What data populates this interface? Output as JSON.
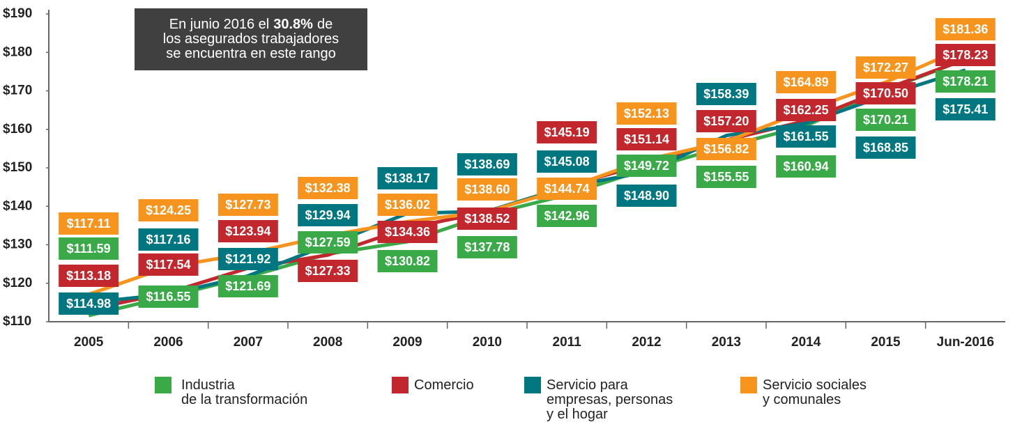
{
  "chart_data": {
    "type": "line",
    "annotation": [
      [
        "En junio 2016 el",
        "30.8%",
        "de"
      ],
      [
        "los asegurados trabajadores"
      ],
      [
        "se encuentra en este rango"
      ]
    ],
    "categories": [
      "2005",
      "2006",
      "2007",
      "2008",
      "2009",
      "2010",
      "2011",
      "2012",
      "2013",
      "2014",
      "2015",
      "Jun-2016"
    ],
    "ylim": [
      110,
      190
    ],
    "yticks": [
      {
        "value": 110,
        "label": "$110"
      },
      {
        "value": 120,
        "label": "$120"
      },
      {
        "value": 130,
        "label": "$130"
      },
      {
        "value": 140,
        "label": "$140"
      },
      {
        "value": 150,
        "label": "$150"
      },
      {
        "value": 160,
        "label": "$160"
      },
      {
        "value": 170,
        "label": "$170"
      },
      {
        "value": 180,
        "label": "$180"
      },
      {
        "value": 190,
        "label": "$190"
      }
    ],
    "series": [
      {
        "name": "Industria\nde la transformación",
        "color": "#3aaa48",
        "values": [
          111.59,
          116.55,
          121.69,
          127.59,
          130.82,
          137.78,
          142.96,
          149.72,
          155.55,
          160.94,
          170.21,
          178.21
        ],
        "value_labels": [
          "$111.59",
          "$116.55",
          "$121.69",
          "$127.59",
          "$130.82",
          "$137.78",
          "$142.96",
          "$149.72",
          "$155.55",
          "$160.94",
          "$170.21",
          "$178.21"
        ]
      },
      {
        "name": "Comercio",
        "color": "#c1272d",
        "values": [
          113.18,
          117.54,
          123.94,
          127.33,
          134.36,
          138.52,
          145.19,
          151.14,
          157.2,
          162.25,
          170.5,
          178.23
        ],
        "value_labels": [
          "$113.18",
          "$117.54",
          "$123.94",
          "$127.33",
          "$134.36",
          "$138.52",
          "$145.19",
          "$151.14",
          "$157.20",
          "$162.25",
          "$170.50",
          "$178.23"
        ]
      },
      {
        "name": "Servicio para\nempresas, personas\ny el hogar",
        "color": "#007681",
        "values": [
          114.98,
          117.16,
          121.92,
          129.94,
          138.17,
          138.69,
          145.08,
          148.9,
          158.39,
          161.55,
          168.85,
          175.41
        ],
        "value_labels": [
          "$114.98",
          "$117.16",
          "$121.92",
          "$129.94",
          "$138.17",
          "$138.69",
          "$145.08",
          "$148.90",
          "$158.39",
          "$161.55",
          "$168.85",
          "$175.41"
        ]
      },
      {
        "name": "Servicio sociales\ny comunales",
        "color": "#f7941d",
        "values": [
          117.11,
          124.25,
          127.73,
          132.38,
          136.02,
          138.6,
          144.74,
          152.13,
          156.82,
          164.89,
          172.27,
          181.36
        ],
        "value_labels": [
          "$117.11",
          "$124.25",
          "$127.73",
          "$132.38",
          "$136.02",
          "$138.60",
          "$144.74",
          "$152.13",
          "$156.82",
          "$164.89",
          "$172.27",
          "$181.36"
        ]
      }
    ]
  }
}
